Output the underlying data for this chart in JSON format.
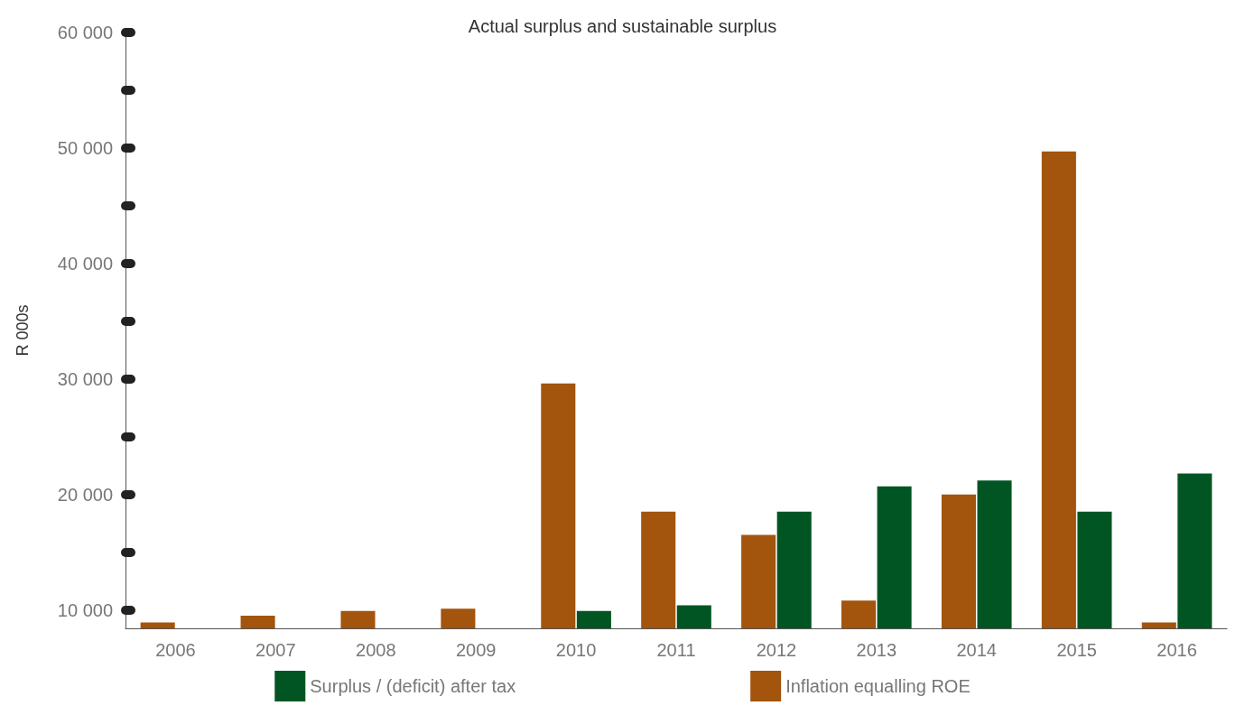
{
  "chart_data": {
    "type": "bar",
    "title": "Actual surplus and sustainable surplus",
    "ylabel": "R 000s",
    "categories": [
      "2006",
      "2007",
      "2008",
      "2009",
      "2010",
      "2011",
      "2012",
      "2013",
      "2014",
      "2015",
      "2016"
    ],
    "series": [
      {
        "name": "Surplus / (deficit) after tax",
        "color": "#005522",
        "values": [
          null,
          null,
          null,
          null,
          9900,
          10400,
          18500,
          20700,
          21200,
          18500,
          21800
        ]
      },
      {
        "name": "Inflation equalling ROE",
        "color": "#a3540d",
        "values": [
          8900,
          9500,
          9900,
          10100,
          29600,
          18500,
          16500,
          10800,
          20000,
          49700,
          8900
        ]
      }
    ],
    "ylim": [
      8400,
      60000
    ],
    "yticks": [
      {
        "value": 10000,
        "label": "10 000"
      },
      {
        "value": 15000,
        "label": null
      },
      {
        "value": 20000,
        "label": "20 000"
      },
      {
        "value": 25000,
        "label": null
      },
      {
        "value": 30000,
        "label": "30 000"
      },
      {
        "value": 35000,
        "label": null
      },
      {
        "value": 40000,
        "label": "40 000"
      },
      {
        "value": 45000,
        "label": null
      },
      {
        "value": 50000,
        "label": "50 000"
      },
      {
        "value": 55000,
        "label": null
      },
      {
        "value": 60000,
        "label": "60 000"
      }
    ],
    "grid": false,
    "legend": "bottom"
  }
}
